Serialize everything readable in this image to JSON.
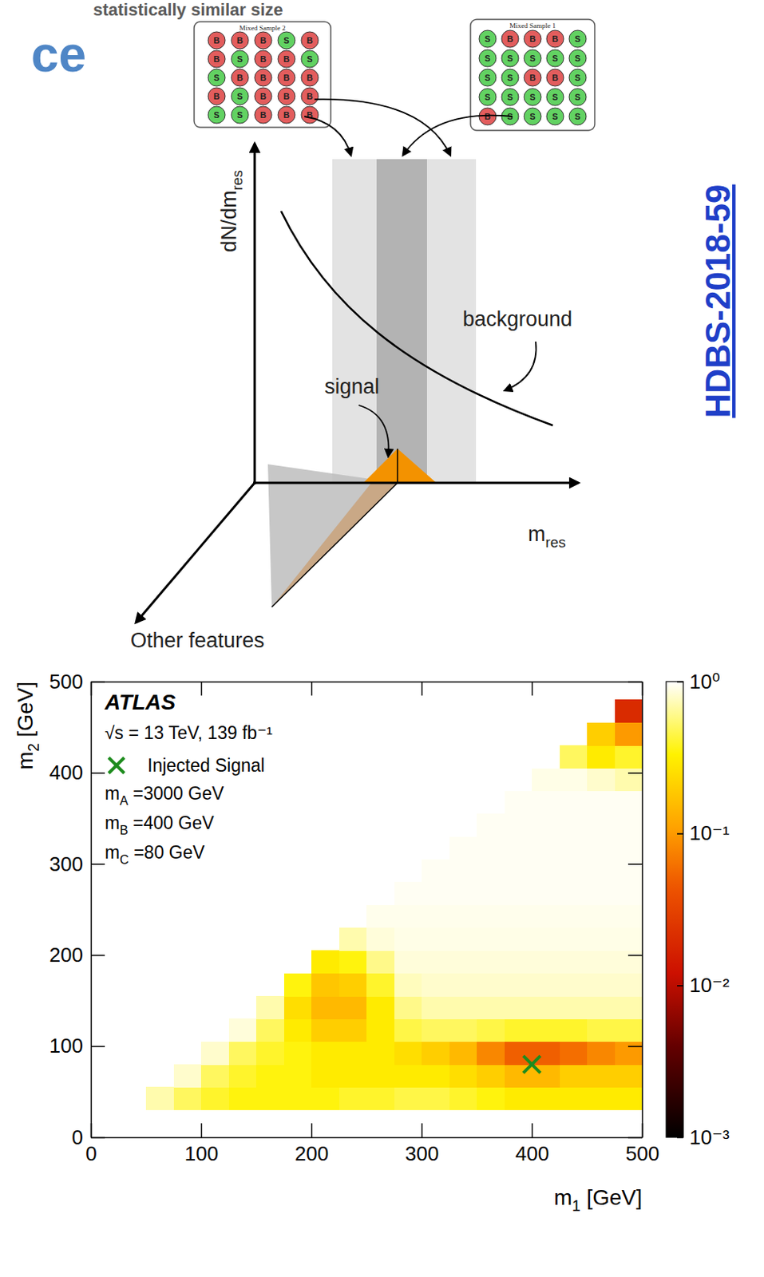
{
  "slide": {
    "title_fragment": "statistically similar size",
    "heading_fragment": "ce",
    "reference": "HDBS-2018-59"
  },
  "diagram": {
    "y_axis_label": {
      "symbol": "dN/dm",
      "subscript": "res"
    },
    "x_axis_label": {
      "symbol": "m",
      "subscript": "res"
    },
    "depth_axis_label": "Other features",
    "signal_label": "signal",
    "background_label": "background",
    "colors": {
      "B": "#e35d5d",
      "S": "#62d262",
      "signal": "#f39200"
    },
    "samples": [
      {
        "title": "Mixed Sample 2",
        "rows": [
          [
            "B",
            "B",
            "B",
            "S",
            "B"
          ],
          [
            "B",
            "S",
            "B",
            "B",
            "S"
          ],
          [
            "S",
            "B",
            "B",
            "B",
            "B"
          ],
          [
            "B",
            "S",
            "B",
            "B",
            "B"
          ],
          [
            "S",
            "S",
            "B",
            "B",
            "B"
          ]
        ]
      },
      {
        "title": "Mixed Sample 1",
        "rows": [
          [
            "S",
            "B",
            "B",
            "B",
            "S"
          ],
          [
            "S",
            "S",
            "S",
            "S",
            "S"
          ],
          [
            "S",
            "S",
            "B",
            "B",
            "S"
          ],
          [
            "S",
            "S",
            "S",
            "S",
            "S"
          ],
          [
            "B",
            "S",
            "S",
            "S",
            "S"
          ]
        ]
      }
    ]
  },
  "chart_data": {
    "type": "heatmap",
    "xlabel": {
      "symbol": "m",
      "subscript": "1",
      "text": " [GeV]"
    },
    "ylabel": {
      "symbol": "m",
      "subscript": "2",
      "text": " [GeV]"
    },
    "xlim": [
      0,
      500
    ],
    "ylim": [
      0,
      500
    ],
    "xticks": [
      0,
      100,
      200,
      300,
      400,
      500
    ],
    "yticks": [
      0,
      100,
      200,
      300,
      400,
      500
    ],
    "annotations": {
      "experiment": "ATLAS",
      "energy": "√s = 13 TeV, 139 fb⁻¹",
      "masses": [
        {
          "symbol": "m",
          "subscript": "A",
          "text": " =3000 GeV"
        },
        {
          "symbol": "m",
          "subscript": "B",
          "text": " =400 GeV"
        },
        {
          "symbol": "m",
          "subscript": "C",
          "text": " =80 GeV"
        }
      ]
    },
    "series": [
      {
        "name": "Injected Signal",
        "type": "scatter",
        "marker": "x",
        "color": "#1e8c1e",
        "x": [
          400
        ],
        "y": [
          80
        ]
      }
    ],
    "cells": {
      "x_edges": [
        0,
        25,
        50,
        75,
        100,
        125,
        150,
        175,
        200,
        225,
        250,
        275,
        300,
        325,
        350,
        375,
        400,
        425,
        450,
        475,
        500
      ],
      "y_edges": [
        30,
        55,
        80,
        105,
        130,
        155,
        180,
        205,
        230,
        255,
        280,
        305,
        330,
        355,
        380,
        405,
        430,
        455,
        480
      ],
      "values": [
        [
          null,
          null,
          0.7,
          0.5,
          0.4,
          0.35,
          0.35,
          0.35,
          0.35,
          0.4,
          0.4,
          0.45,
          0.45,
          0.4,
          0.35,
          0.3,
          0.3,
          0.3,
          0.3,
          0.3
        ],
        [
          null,
          null,
          null,
          0.8,
          0.5,
          0.4,
          0.35,
          0.35,
          0.3,
          0.3,
          0.3,
          0.3,
          0.3,
          0.25,
          0.2,
          0.15,
          0.15,
          0.2,
          0.2,
          0.2
        ],
        [
          null,
          null,
          null,
          null,
          0.8,
          0.5,
          0.4,
          0.35,
          0.3,
          0.3,
          0.3,
          0.25,
          0.2,
          0.15,
          0.08,
          0.05,
          0.05,
          0.06,
          0.08,
          0.1
        ],
        [
          null,
          null,
          null,
          null,
          null,
          0.85,
          0.5,
          0.3,
          0.2,
          0.2,
          0.3,
          0.45,
          0.5,
          0.5,
          0.45,
          0.4,
          0.4,
          0.4,
          0.45,
          0.45
        ],
        [
          null,
          null,
          null,
          null,
          null,
          null,
          0.7,
          0.25,
          0.15,
          0.15,
          0.3,
          0.6,
          0.7,
          0.7,
          0.7,
          0.7,
          0.7,
          0.7,
          0.7,
          0.7
        ],
        [
          null,
          null,
          null,
          null,
          null,
          null,
          null,
          0.35,
          0.18,
          0.2,
          0.4,
          0.75,
          0.8,
          0.8,
          0.8,
          0.8,
          0.8,
          0.8,
          0.8,
          0.8
        ],
        [
          null,
          null,
          null,
          null,
          null,
          null,
          null,
          null,
          0.3,
          0.35,
          0.6,
          0.85,
          0.85,
          0.85,
          0.85,
          0.85,
          0.85,
          0.85,
          0.85,
          0.85
        ],
        [
          null,
          null,
          null,
          null,
          null,
          null,
          null,
          null,
          null,
          0.7,
          0.85,
          0.9,
          0.9,
          0.9,
          0.9,
          0.9,
          0.9,
          0.9,
          0.9,
          0.9
        ],
        [
          null,
          null,
          null,
          null,
          null,
          null,
          null,
          null,
          null,
          null,
          0.92,
          0.92,
          0.92,
          0.92,
          0.92,
          0.92,
          0.92,
          0.92,
          0.92,
          0.92
        ],
        [
          null,
          null,
          null,
          null,
          null,
          null,
          null,
          null,
          null,
          null,
          null,
          0.95,
          0.95,
          0.95,
          0.95,
          0.95,
          0.95,
          0.95,
          0.95,
          0.95
        ],
        [
          null,
          null,
          null,
          null,
          null,
          null,
          null,
          null,
          null,
          null,
          null,
          null,
          0.95,
          0.95,
          0.95,
          0.95,
          0.95,
          0.95,
          0.95,
          0.95
        ],
        [
          null,
          null,
          null,
          null,
          null,
          null,
          null,
          null,
          null,
          null,
          null,
          null,
          null,
          0.95,
          0.95,
          0.95,
          0.95,
          0.95,
          0.95,
          0.95
        ],
        [
          null,
          null,
          null,
          null,
          null,
          null,
          null,
          null,
          null,
          null,
          null,
          null,
          null,
          null,
          0.95,
          0.95,
          0.95,
          0.95,
          0.95,
          0.95
        ],
        [
          null,
          null,
          null,
          null,
          null,
          null,
          null,
          null,
          null,
          null,
          null,
          null,
          null,
          null,
          null,
          0.95,
          0.95,
          0.95,
          0.95,
          0.95
        ],
        [
          null,
          null,
          null,
          null,
          null,
          null,
          null,
          null,
          null,
          null,
          null,
          null,
          null,
          null,
          null,
          null,
          0.9,
          0.9,
          0.8,
          0.7
        ],
        [
          null,
          null,
          null,
          null,
          null,
          null,
          null,
          null,
          null,
          null,
          null,
          null,
          null,
          null,
          null,
          null,
          null,
          0.5,
          0.3,
          0.4
        ],
        [
          null,
          null,
          null,
          null,
          null,
          null,
          null,
          null,
          null,
          null,
          null,
          null,
          null,
          null,
          null,
          null,
          null,
          null,
          0.2,
          0.1
        ],
        [
          null,
          null,
          null,
          null,
          null,
          null,
          null,
          null,
          null,
          null,
          null,
          null,
          null,
          null,
          null,
          null,
          null,
          null,
          null,
          0.02
        ]
      ]
    },
    "colorbar": {
      "range": [
        0.001,
        1
      ],
      "ticks": [
        {
          "value": 1,
          "label": "10⁰"
        },
        {
          "value": 0.1,
          "label": "10⁻¹"
        },
        {
          "value": 0.01,
          "label": "10⁻²"
        },
        {
          "value": 0.001,
          "label": "10⁻³"
        }
      ]
    }
  }
}
